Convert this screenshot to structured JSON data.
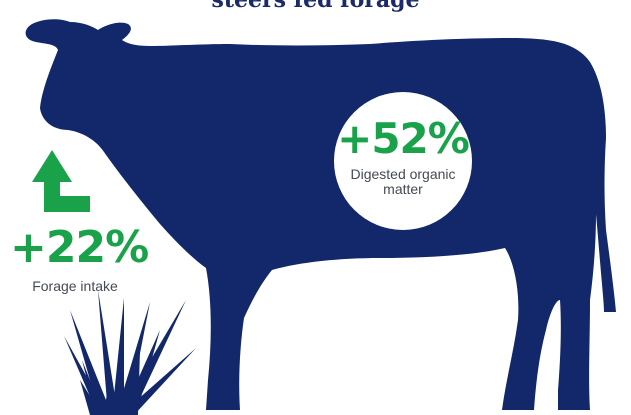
{
  "title": "steers fed forage",
  "colors": {
    "cow": "#12286a",
    "accent_green": "#19a24a",
    "label_gray": "#444a55",
    "background": "#ffffff"
  },
  "icons": {
    "arrow": "up-arrow-icon",
    "grass": "grass-icon",
    "animal": "steer-silhouette"
  },
  "stats": {
    "intake": {
      "value": "+22%",
      "label": "Forage intake"
    },
    "digestion": {
      "value": "+52%",
      "label_line1": "Digested organic",
      "label_line2": "matter"
    }
  }
}
